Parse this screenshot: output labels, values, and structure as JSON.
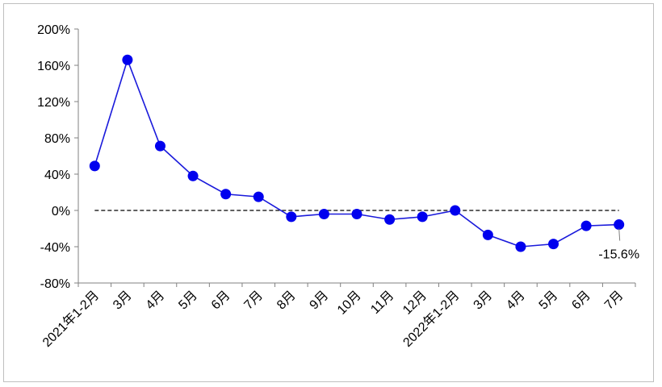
{
  "colors": {
    "series": "#1a1adb",
    "marker": "#0000ee",
    "axis": "#808080",
    "zero_line": "#000000"
  },
  "chart_data": {
    "type": "line",
    "categories": [
      "2021年1-2月",
      "3月",
      "4月",
      "5月",
      "6月",
      "7月",
      "8月",
      "9月",
      "10月",
      "11月",
      "12月",
      "2022年1-2月",
      "3月",
      "4月",
      "5月",
      "6月",
      "7月"
    ],
    "series": [
      {
        "values": [
          49,
          166,
          71,
          38,
          18,
          15,
          -7,
          -4,
          -4,
          -10,
          -7,
          0,
          -27,
          -40,
          -37,
          -17,
          -15.6
        ]
      }
    ],
    "ylim": [
      -80,
      200
    ],
    "yticks": [
      -80,
      -40,
      0,
      40,
      80,
      120,
      160,
      200
    ],
    "ytick_labels": [
      "-80%",
      "-40%",
      "0%",
      "40%",
      "80%",
      "120%",
      "160%",
      "200%"
    ],
    "zero_reference_line": "dashed",
    "data_labels": [
      {
        "index": 16,
        "text": "-15.6%"
      }
    ],
    "grid": false,
    "legend": "none"
  }
}
